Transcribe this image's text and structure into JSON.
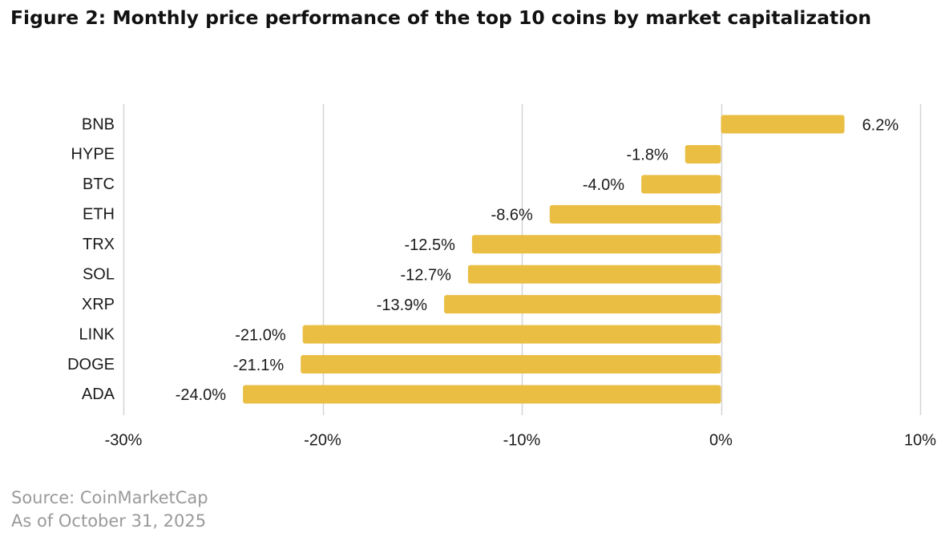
{
  "title": "Figure 2: Monthly price performance of the top 10 coins by market capitalization",
  "chart_data": {
    "type": "bar",
    "orientation": "horizontal",
    "title": "Figure 2: Monthly price performance of the top 10 coins by market capitalization",
    "xlabel": "",
    "ylabel": "",
    "categories": [
      "BNB",
      "HYPE",
      "BTC",
      "ETH",
      "TRX",
      "SOL",
      "XRP",
      "LINK",
      "DOGE",
      "ADA"
    ],
    "values": [
      6.2,
      -1.8,
      -4.0,
      -8.6,
      -12.5,
      -12.7,
      -13.9,
      -21.0,
      -21.1,
      -24.0
    ],
    "value_labels": [
      "6.2%",
      "-1.8%",
      "-4.0%",
      "-8.6%",
      "-12.5%",
      "-12.7%",
      "-13.9%",
      "-21.0%",
      "-21.1%",
      "-24.0%"
    ],
    "xlim": [
      -30,
      10
    ],
    "xticks": [
      -30,
      -20,
      -10,
      0,
      10
    ],
    "xtick_labels": [
      "-30%",
      "-20%",
      "-10%",
      "0%",
      "10%"
    ],
    "grid": true,
    "bar_color": "#E9BE43",
    "grid_color": "#D4D4D4"
  },
  "footer": {
    "source": "Source: CoinMarketCap",
    "date": "As of October 31, 2025"
  }
}
